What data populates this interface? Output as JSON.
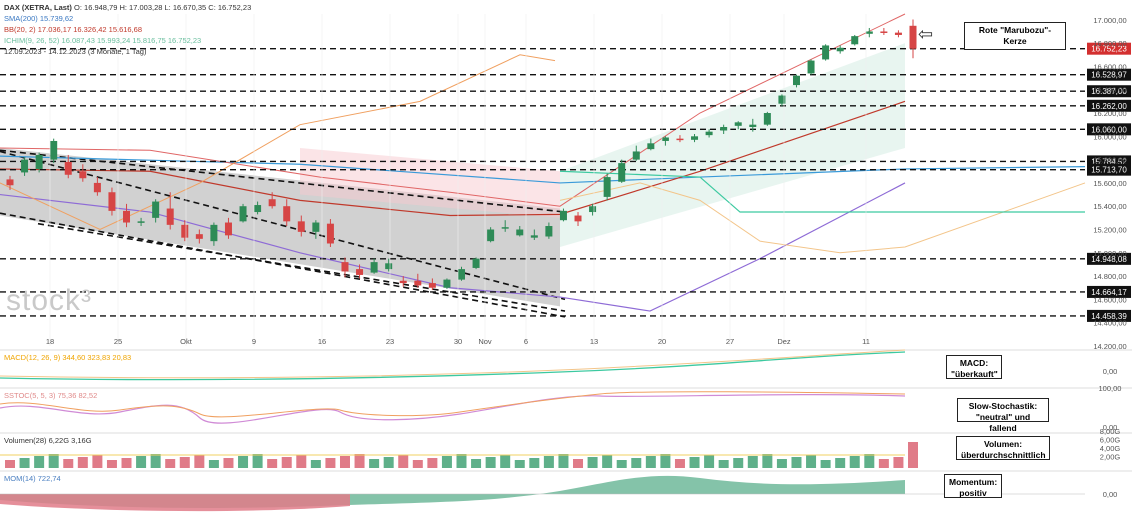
{
  "header": {
    "symbol": "DAX (XETRA, Last)",
    "ohlc": "O: 16.948,79  H: 17.003,28  L: 16.670,35  C: 16.752,23",
    "sma": "SMA(200)  15.739,62",
    "bb": "BB(20, 2)  17.036,17  16.326,42  15.616,68",
    "ichimoku": "ICHIM(9, 26, 52)  16.087,43  15.993,24  15.816,75  16.752,23",
    "range": "12.09.2023 - 14.12.2023  (3 Monate, 1 Tag)"
  },
  "watermark": "stock³",
  "annotations": {
    "marubozu": "Rote \"Marubozu\"-Kerze",
    "arrow": "⇦",
    "macd": "MACD: \"überkauft\"",
    "stoch": "Slow-Stochastik: \"neutral\" und fallend",
    "volume": "Volumen: überdurchschnittlich",
    "momentum": "Momentum: positiv"
  },
  "panels": {
    "macd_label": "MACD(12, 26, 9)  344,60  323,83  20,83",
    "stoch_label": "SSTOC(5, 5, 3)  75,36  82,52",
    "volume_label": "Volumen(28)  6,22G  3,16G",
    "mom_label": "MOM(14)  722,74"
  },
  "chart_data": {
    "type": "candlestick",
    "title": "DAX (XETRA, Last)",
    "y_ticks": [
      "17.000,00",
      "16.800,00",
      "16.600,00",
      "16.400,00",
      "16.200,00",
      "16.000,00",
      "15.800,00",
      "15.600,00",
      "15.400,00",
      "15.200,00",
      "15.000,00",
      "14.800,00",
      "14.600,00",
      "14.400,00",
      "14.200,00"
    ],
    "ylim": [
      14200,
      17050
    ],
    "x_ticks": [
      "18",
      "25",
      "Okt",
      "9",
      "16",
      "23",
      "30",
      "Nov",
      "6",
      "13",
      "20",
      "27",
      "Dez",
      "11"
    ],
    "horizontal_levels": [
      16752.23,
      16528.97,
      16387.0,
      16262.0,
      16060.0,
      15784.52,
      15713.7,
      14948.08,
      14664.17,
      14458.39
    ],
    "level_labels": [
      "16.752,23",
      "16.528,97",
      "16.387,00",
      "16.262,00",
      "16.060,00",
      "15.784,52",
      "15.713,70",
      "14.948,08",
      "14.664,17",
      "14.458,39"
    ],
    "candles": [
      [
        15630,
        15660,
        15540,
        15580
      ],
      [
        15690,
        15820,
        15660,
        15800
      ],
      [
        15720,
        15860,
        15690,
        15840
      ],
      [
        15800,
        15980,
        15770,
        15960
      ],
      [
        15780,
        15840,
        15640,
        15670
      ],
      [
        15700,
        15760,
        15610,
        15640
      ],
      [
        15600,
        15650,
        15490,
        15520
      ],
      [
        15520,
        15560,
        15320,
        15360
      ],
      [
        15360,
        15420,
        15220,
        15260
      ],
      [
        15270,
        15300,
        15230,
        15270
      ],
      [
        15300,
        15460,
        15260,
        15440
      ],
      [
        15380,
        15520,
        15200,
        15240
      ],
      [
        15240,
        15280,
        15100,
        15130
      ],
      [
        15160,
        15200,
        15080,
        15120
      ],
      [
        15100,
        15260,
        15060,
        15240
      ],
      [
        15260,
        15300,
        15120,
        15150
      ],
      [
        15270,
        15420,
        15260,
        15400
      ],
      [
        15350,
        15440,
        15330,
        15410
      ],
      [
        15460,
        15520,
        15380,
        15400
      ],
      [
        15400,
        15460,
        15230,
        15270
      ],
      [
        15270,
        15320,
        15140,
        15180
      ],
      [
        15180,
        15280,
        15120,
        15260
      ],
      [
        15250,
        15290,
        15050,
        15080
      ],
      [
        14920,
        14960,
        14790,
        14840
      ],
      [
        14860,
        14900,
        14780,
        14810
      ],
      [
        14830,
        14950,
        14820,
        14920
      ],
      [
        14860,
        14950,
        14840,
        14910
      ],
      [
        14760,
        14800,
        14710,
        14740
      ],
      [
        14760,
        14820,
        14700,
        14720
      ],
      [
        14740,
        14780,
        14680,
        14700
      ],
      [
        14700,
        14780,
        14690,
        14770
      ],
      [
        14770,
        14880,
        14760,
        14860
      ],
      [
        14870,
        14960,
        14860,
        14950
      ],
      [
        15100,
        15220,
        15090,
        15200
      ],
      [
        15220,
        15280,
        15180,
        15220
      ],
      [
        15150,
        15230,
        15140,
        15200
      ],
      [
        15130,
        15200,
        15110,
        15150
      ],
      [
        15140,
        15260,
        15120,
        15230
      ],
      [
        15280,
        15380,
        15270,
        15360
      ],
      [
        15320,
        15350,
        15230,
        15270
      ],
      [
        15350,
        15420,
        15320,
        15400
      ],
      [
        15480,
        15680,
        15450,
        15650
      ],
      [
        15610,
        15800,
        15600,
        15770
      ],
      [
        15800,
        15920,
        15790,
        15870
      ],
      [
        15890,
        15980,
        15880,
        15940
      ],
      [
        15960,
        16000,
        15920,
        15990
      ],
      [
        15980,
        16010,
        15950,
        15970
      ],
      [
        15970,
        16020,
        15950,
        16000
      ],
      [
        16010,
        16060,
        15990,
        16040
      ],
      [
        16050,
        16100,
        16020,
        16080
      ],
      [
        16090,
        16130,
        16060,
        16120
      ],
      [
        16080,
        16150,
        16040,
        16100
      ],
      [
        16100,
        16210,
        16090,
        16200
      ],
      [
        16280,
        16360,
        16260,
        16350
      ],
      [
        16440,
        16530,
        16420,
        16520
      ],
      [
        16540,
        16660,
        16530,
        16650
      ],
      [
        16660,
        16790,
        16650,
        16780
      ],
      [
        16730,
        16780,
        16710,
        16760
      ],
      [
        16790,
        16870,
        16780,
        16860
      ],
      [
        16880,
        16930,
        16850,
        16900
      ],
      [
        16900,
        16930,
        16870,
        16890
      ],
      [
        16890,
        16910,
        16850,
        16870
      ],
      [
        16948.79,
        17003.28,
        16670.35,
        16752.23
      ]
    ],
    "sma200": 15739.62,
    "bb": {
      "upper": 17036.17,
      "middle": 16326.42,
      "lower": 15616.68
    },
    "volume_avg": "3,16G",
    "volume_last": "6,22G",
    "momentum": "722,74",
    "stoch": [
      "75,36",
      "82,52"
    ],
    "macd": [
      "344,60",
      "323,83",
      "20,83"
    ]
  }
}
